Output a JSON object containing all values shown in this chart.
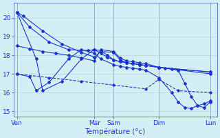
{
  "xlabel": "Température (°c)",
  "bg_color": "#d4eef5",
  "grid_color": "#aaccd8",
  "line_color": "#1a35cc",
  "spine_color": "#3355aa",
  "ylim": [
    14.7,
    20.8
  ],
  "yticks": [
    15,
    16,
    17,
    18,
    19,
    20
  ],
  "day_labels": [
    "Ven",
    "Mar",
    "Sam",
    "Dim",
    "Lun"
  ],
  "day_positions": [
    0,
    12,
    15,
    22,
    30
  ],
  "xlim": [
    -0.5,
    31
  ],
  "series": [
    {
      "x": [
        0,
        1,
        4,
        7,
        10,
        12,
        13,
        15,
        16,
        17,
        18,
        19,
        20,
        22,
        23,
        24,
        25,
        26,
        27,
        28,
        29,
        30
      ],
      "y": [
        20.3,
        20.1,
        19.3,
        18.6,
        18.15,
        17.9,
        18.2,
        18.15,
        17.75,
        17.6,
        17.55,
        17.5,
        17.45,
        17.35,
        17.3,
        17.25,
        17.2,
        16.5,
        15.8,
        15.3,
        15.2,
        15.5
      ]
    },
    {
      "x": [
        0,
        2,
        4,
        6,
        8,
        10,
        12,
        13,
        15,
        16,
        17,
        18,
        19,
        20,
        22,
        30
      ],
      "y": [
        18.5,
        18.35,
        18.2,
        18.1,
        18.0,
        17.85,
        17.7,
        18.3,
        18.2,
        17.85,
        17.7,
        17.65,
        17.6,
        17.55,
        17.35,
        17.0
      ]
    },
    {
      "x": [
        0,
        2,
        5,
        8,
        11,
        12,
        13,
        14,
        15,
        16,
        17,
        18,
        19,
        20,
        22,
        30
      ],
      "y": [
        20.3,
        19.5,
        18.7,
        18.3,
        18.25,
        18.3,
        18.25,
        18.0,
        17.75,
        17.65,
        17.6,
        17.55,
        17.5,
        17.45,
        17.35,
        17.1
      ]
    },
    {
      "x": [
        0,
        3,
        4,
        7,
        10,
        12,
        13,
        14,
        15,
        16,
        17,
        18,
        19,
        20,
        22,
        30
      ],
      "y": [
        20.3,
        17.8,
        16.1,
        16.6,
        17.8,
        18.3,
        18.1,
        17.9,
        17.75,
        17.65,
        17.6,
        17.55,
        17.5,
        17.45,
        17.35,
        17.1
      ]
    },
    {
      "x": [
        0,
        2,
        3,
        5,
        8,
        10,
        12,
        13,
        15,
        16,
        17,
        18,
        19,
        20,
        22,
        24,
        25,
        26,
        27,
        28,
        29,
        30
      ],
      "y": [
        17.0,
        16.85,
        16.1,
        16.55,
        17.8,
        18.3,
        18.1,
        17.8,
        17.5,
        17.4,
        17.35,
        17.3,
        17.25,
        17.2,
        16.8,
        16.0,
        15.5,
        15.2,
        15.15,
        15.3,
        15.4,
        15.55
      ]
    }
  ],
  "dashed_series": {
    "x": [
      0,
      5,
      10,
      15,
      20,
      22,
      25,
      30
    ],
    "y": [
      17.0,
      16.8,
      16.6,
      16.4,
      16.2,
      16.7,
      16.1,
      16.0
    ]
  }
}
